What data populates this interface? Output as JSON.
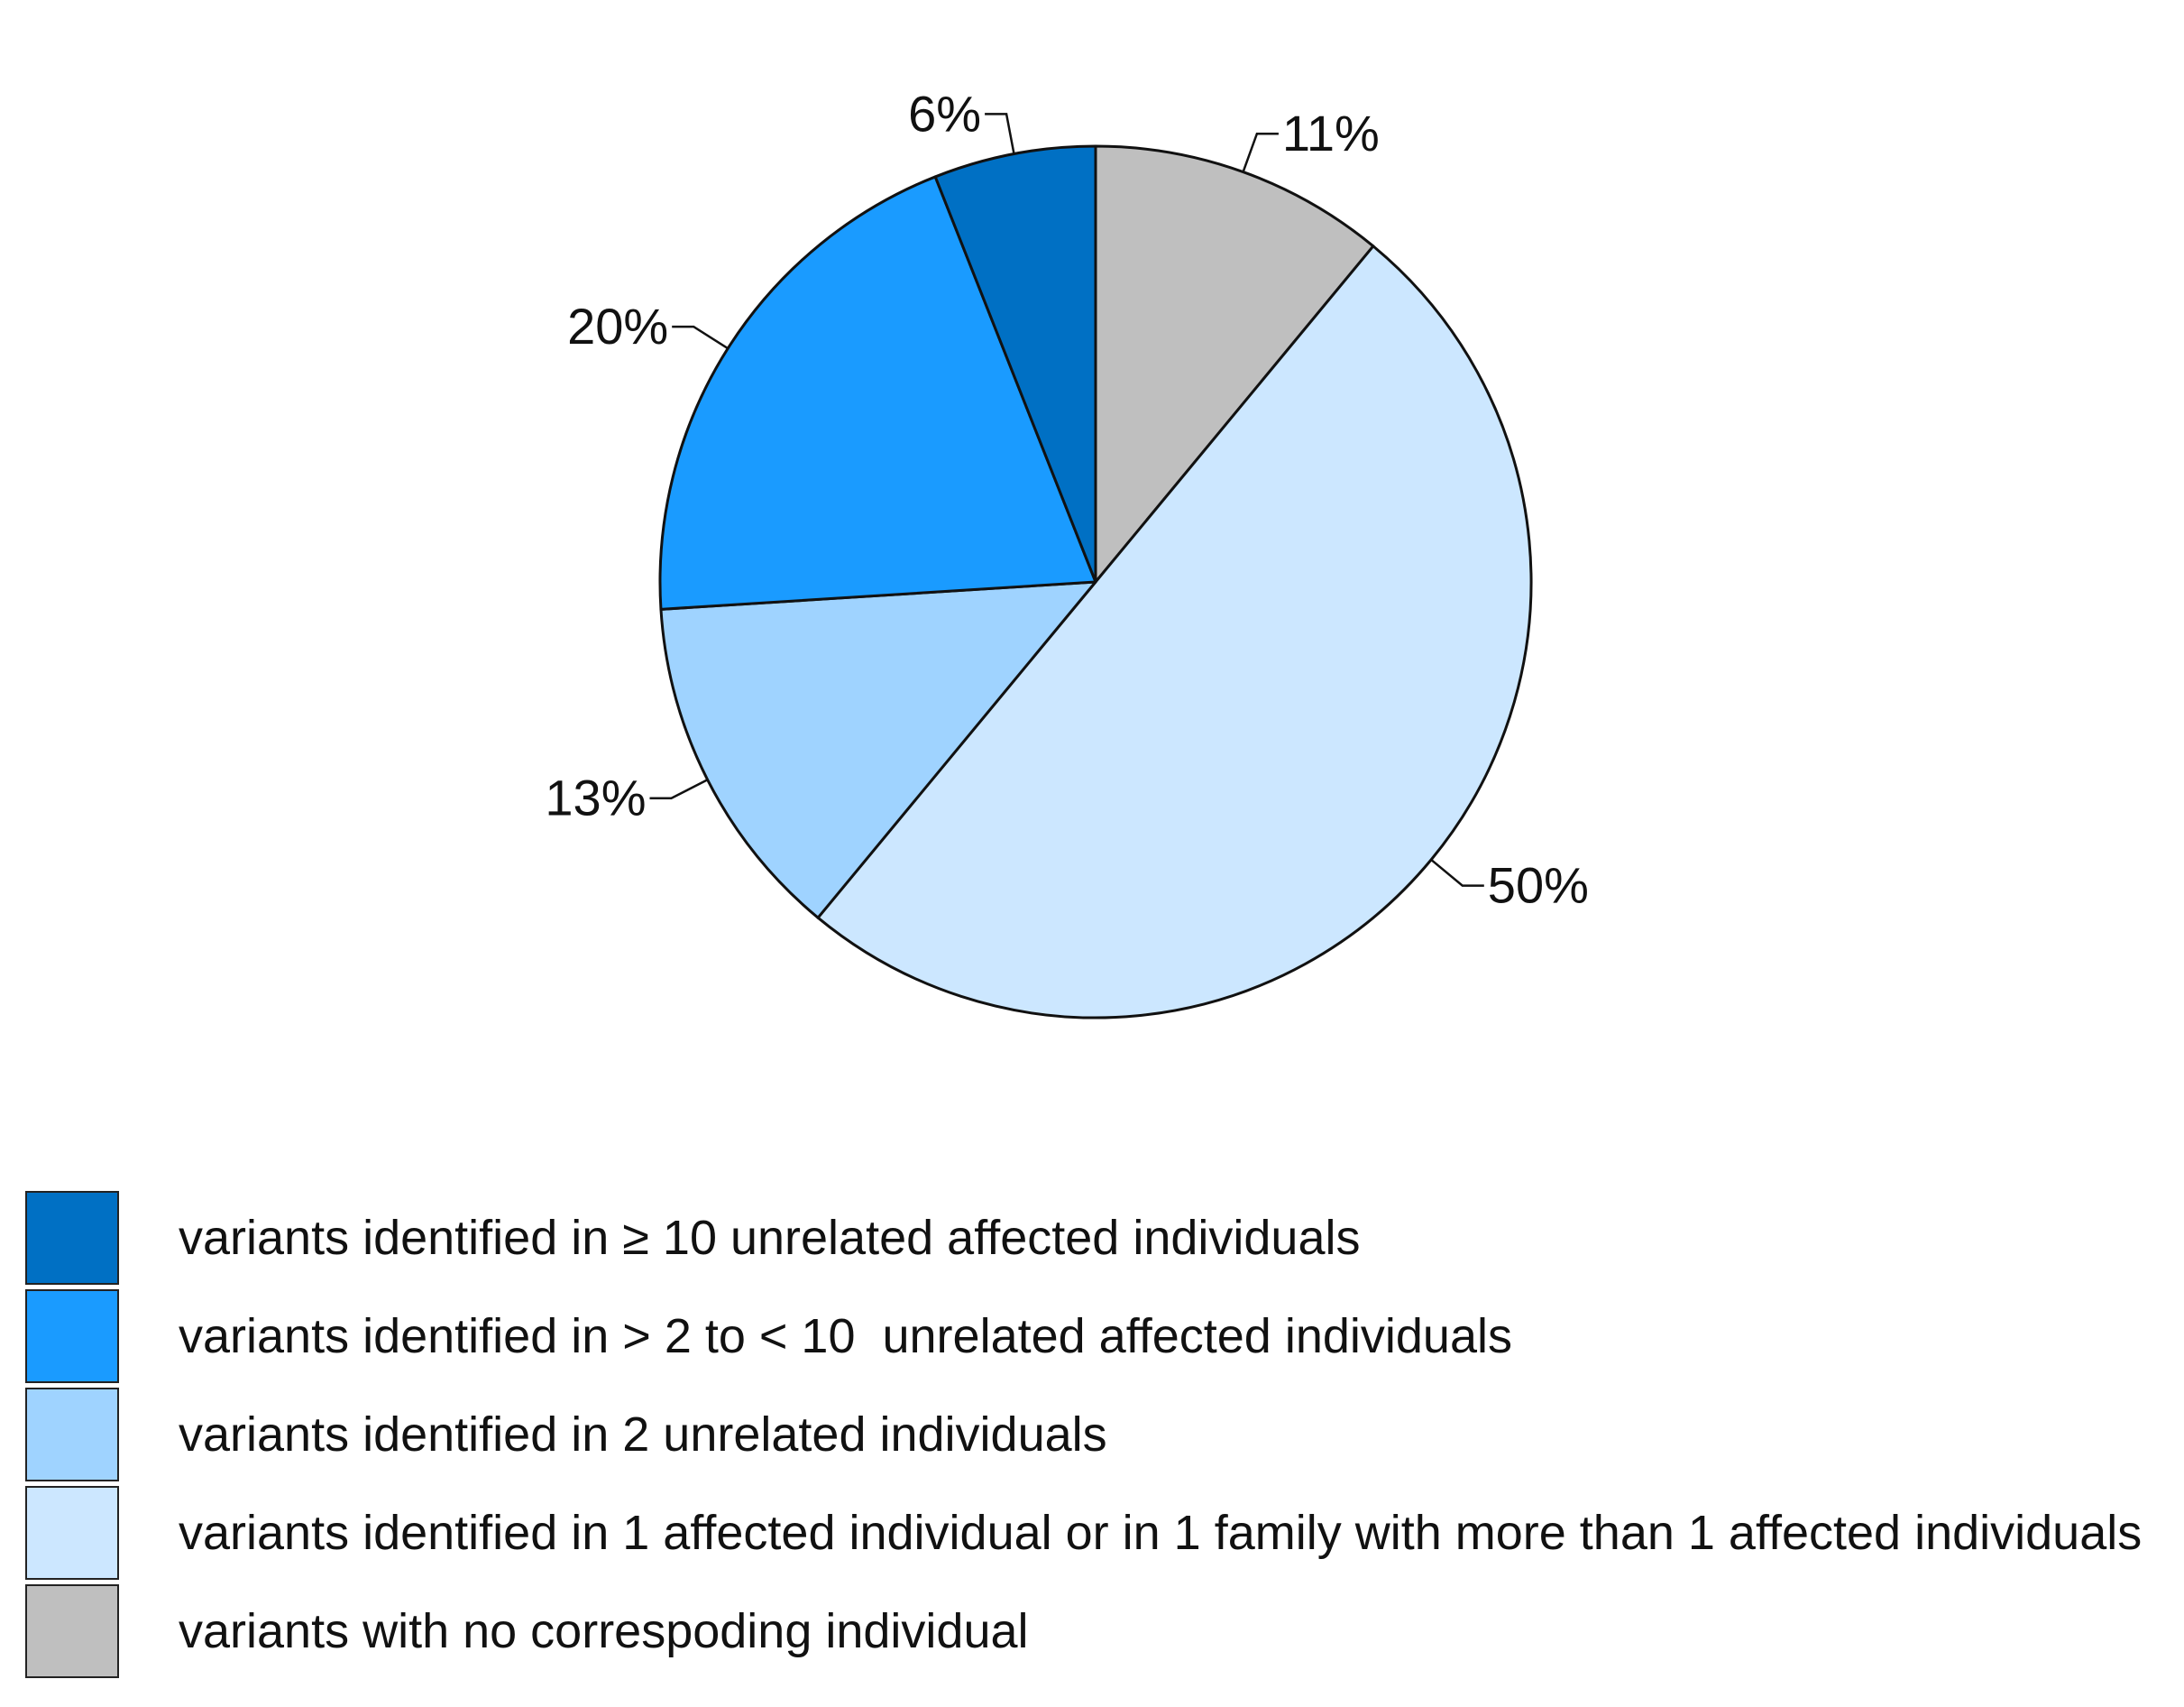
{
  "chart_data": {
    "type": "pie",
    "slices": [
      {
        "label": "variants with no correspoding individual",
        "value": 11,
        "value_label": "11%",
        "color": "#bfbfbf"
      },
      {
        "label": "variants identified in 1 affected individual or in 1 family with more than 1 affected individuals",
        "value": 50,
        "value_label": "50%",
        "color": "#cce7ff"
      },
      {
        "label": "variants identified in 2 unrelated individuals",
        "value": 13,
        "value_label": "13%",
        "color": "#9fd3ff"
      },
      {
        "label": "variants identified in > 2 to < 10  unrelated affected individuals",
        "value": 20,
        "value_label": "20%",
        "color": "#1a9bff"
      },
      {
        "label": "variants identified in ≥ 10 unrelated affected individuals",
        "value": 6,
        "value_label": "6%",
        "color": "#0070c4"
      }
    ],
    "start": "12 o'clock",
    "direction": "clockwise",
    "legend": {
      "placement": "bottom-left",
      "order": [
        4,
        3,
        2,
        1,
        0
      ]
    }
  }
}
